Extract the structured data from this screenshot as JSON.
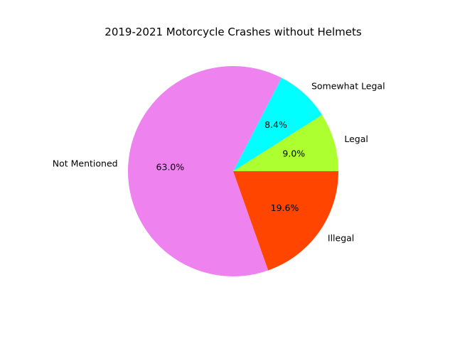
{
  "chart_data": {
    "type": "pie",
    "title": "2019-2021 Motorcycle Crashes without Helmets",
    "slices": [
      {
        "label": "Legal",
        "value": 9.0,
        "pct_label": "9.0%",
        "color": "#adff2f"
      },
      {
        "label": "Somewhat Legal",
        "value": 8.4,
        "pct_label": "8.4%",
        "color": "#00ffff"
      },
      {
        "label": "Not Mentioned",
        "value": 63.0,
        "pct_label": "63.0%",
        "color": "#ee82ee"
      },
      {
        "label": "Illegal",
        "value": 19.6,
        "pct_label": "19.6%",
        "color": "#ff4500"
      }
    ],
    "start_angle_deg": 0,
    "direction": "counterclockwise"
  }
}
